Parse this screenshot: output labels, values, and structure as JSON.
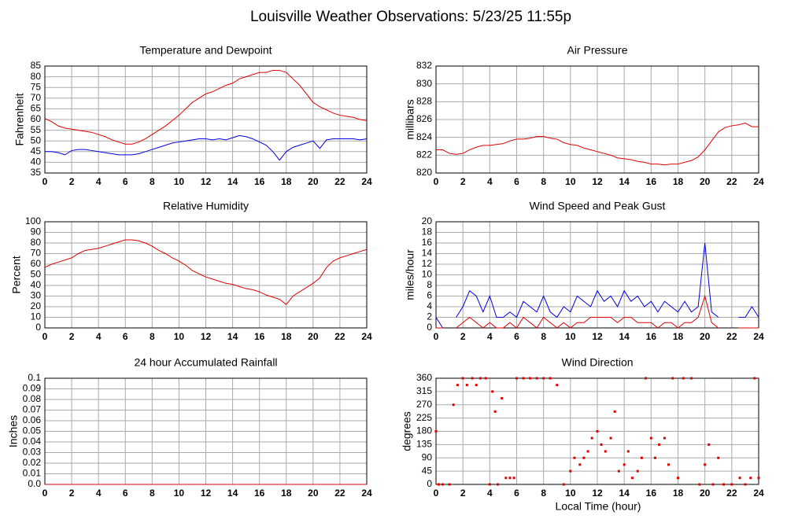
{
  "title": "Louisville Weather Observations: 5/23/25 11:55p",
  "x_label": "Local Time (hour)",
  "chart_data": [
    {
      "type": "line",
      "title": "Temperature and Dewpoint",
      "y_label": "Fahrenheit",
      "x": [
        0,
        0.5,
        1,
        1.5,
        2,
        2.5,
        3,
        3.5,
        4,
        4.5,
        5,
        5.5,
        6,
        6.5,
        7,
        7.5,
        8,
        8.5,
        9,
        9.5,
        10,
        10.5,
        11,
        11.5,
        12,
        12.5,
        13,
        13.5,
        14,
        14.5,
        15,
        15.5,
        16,
        16.5,
        17,
        17.5,
        18,
        18.5,
        19,
        19.5,
        20,
        20.5,
        21,
        21.5,
        22,
        22.5,
        23,
        23.5,
        24
      ],
      "series": [
        {
          "color": "#e00000",
          "values": [
            60.5,
            59,
            57,
            56,
            55.5,
            55,
            54.5,
            54,
            53,
            52,
            50.5,
            49.5,
            48.5,
            48.5,
            49.5,
            51,
            53,
            55,
            57,
            59.5,
            62,
            65,
            68,
            70,
            72,
            73,
            74.5,
            76,
            77,
            79,
            80,
            81,
            82,
            82,
            83,
            83,
            82,
            79,
            76,
            72,
            68,
            66,
            64.5,
            63,
            62,
            61.5,
            61,
            60,
            59.5
          ]
        },
        {
          "color": "#0000e0",
          "values": [
            45,
            45,
            44.5,
            43.5,
            45.5,
            46,
            46,
            45.5,
            45,
            44.5,
            44,
            43.5,
            43.5,
            43.5,
            44,
            45,
            46,
            47,
            48,
            49,
            49.5,
            50,
            50.5,
            51,
            51,
            50.5,
            51,
            50.5,
            51.5,
            52.5,
            52,
            51,
            49.5,
            48,
            45,
            41,
            45,
            47,
            48,
            49,
            50,
            46.5,
            50.5,
            51,
            51,
            51,
            51,
            50.5,
            51
          ]
        }
      ],
      "xlim": [
        0,
        24
      ],
      "xticks": [
        0,
        2,
        4,
        6,
        8,
        10,
        12,
        14,
        16,
        18,
        20,
        22,
        24
      ],
      "ylim": [
        35,
        85
      ],
      "yticks": [
        35,
        40,
        45,
        50,
        55,
        60,
        65,
        70,
        75,
        80,
        85
      ],
      "grid": true
    },
    {
      "type": "line",
      "title": "Air Pressure",
      "y_label": "millibars",
      "x": [
        0,
        0.5,
        1,
        1.5,
        2,
        2.5,
        3,
        3.5,
        4,
        4.5,
        5,
        5.5,
        6,
        6.5,
        7,
        7.5,
        8,
        8.5,
        9,
        9.5,
        10,
        10.5,
        11,
        11.5,
        12,
        12.5,
        13,
        13.5,
        14,
        14.5,
        15,
        15.5,
        16,
        16.5,
        17,
        17.5,
        18,
        18.5,
        19,
        19.5,
        20,
        20.5,
        21,
        21.5,
        22,
        22.5,
        23,
        23.5,
        24
      ],
      "series": [
        {
          "color": "#e00000",
          "values": [
            822.6,
            822.6,
            822.2,
            822.1,
            822.2,
            822.6,
            822.9,
            823.1,
            823.1,
            823.2,
            823.3,
            823.6,
            823.8,
            823.8,
            823.9,
            824.1,
            824.1,
            823.9,
            823.8,
            823.4,
            823.2,
            823.1,
            822.8,
            822.6,
            822.4,
            822.2,
            822,
            821.7,
            821.6,
            821.5,
            821.3,
            821.2,
            821,
            821,
            820.9,
            821,
            821,
            821.2,
            821.4,
            821.8,
            822.6,
            823.6,
            824.6,
            825.1,
            825.3,
            825.4,
            825.6,
            825.2,
            825.2
          ]
        }
      ],
      "xlim": [
        0,
        24
      ],
      "xticks": [
        0,
        2,
        4,
        6,
        8,
        10,
        12,
        14,
        16,
        18,
        20,
        22,
        24
      ],
      "ylim": [
        820,
        832
      ],
      "yticks": [
        820,
        822,
        824,
        826,
        828,
        830,
        832
      ],
      "grid": true
    },
    {
      "type": "line",
      "title": "Relative Humidity",
      "y_label": "Percent",
      "x": [
        0,
        0.5,
        1,
        1.5,
        2,
        2.5,
        3,
        3.5,
        4,
        4.5,
        5,
        5.5,
        6,
        6.5,
        7,
        7.5,
        8,
        8.5,
        9,
        9.5,
        10,
        10.5,
        11,
        11.5,
        12,
        12.5,
        13,
        13.5,
        14,
        14.5,
        15,
        15.5,
        16,
        16.5,
        17,
        17.5,
        18,
        18.5,
        19,
        19.5,
        20,
        20.5,
        21,
        21.5,
        22,
        22.5,
        23,
        23.5,
        24
      ],
      "series": [
        {
          "color": "#e00000",
          "values": [
            57,
            60,
            62,
            64,
            66,
            70,
            73,
            74,
            75,
            77,
            79,
            81,
            83,
            83,
            82,
            80,
            77,
            73,
            70,
            66,
            63,
            59,
            54,
            51,
            48,
            46,
            44,
            42,
            41,
            39,
            37,
            36,
            34,
            31,
            29,
            27,
            22,
            30,
            34,
            38,
            42,
            47,
            57,
            63,
            66,
            68,
            70,
            72,
            74
          ]
        }
      ],
      "xlim": [
        0,
        24
      ],
      "xticks": [
        0,
        2,
        4,
        6,
        8,
        10,
        12,
        14,
        16,
        18,
        20,
        22,
        24
      ],
      "ylim": [
        0,
        100
      ],
      "yticks": [
        0,
        10,
        20,
        30,
        40,
        50,
        60,
        70,
        80,
        90,
        100
      ],
      "grid": true
    },
    {
      "type": "line",
      "title": "Wind Speed and Peak Gust",
      "y_label": "miles/hour",
      "x": [
        0,
        0.5,
        1,
        1.5,
        2,
        2.5,
        3,
        3.5,
        4,
        4.5,
        5,
        5.5,
        6,
        6.5,
        7,
        7.5,
        8,
        8.5,
        9,
        9.5,
        10,
        10.5,
        11,
        11.5,
        12,
        12.5,
        13,
        13.5,
        14,
        14.5,
        15,
        15.5,
        16,
        16.5,
        17,
        17.5,
        18,
        18.5,
        19,
        19.5,
        20,
        20.5,
        21,
        21.5,
        22,
        22.5,
        23,
        23.5,
        24
      ],
      "series": [
        {
          "color": "#0000e0",
          "values": [
            2,
            0,
            null,
            2,
            4,
            7,
            6,
            3,
            6,
            2,
            2,
            3,
            2,
            5,
            4,
            3,
            6,
            3,
            2,
            4,
            3,
            6,
            5,
            4,
            7,
            5,
            6,
            4,
            7,
            5,
            6,
            4,
            5,
            3,
            5,
            4,
            3,
            5,
            3,
            4,
            16,
            3,
            2,
            null,
            null,
            2,
            2,
            4,
            2
          ]
        },
        {
          "color": "#e00000",
          "values": [
            0,
            0,
            null,
            0,
            1,
            2,
            1,
            0,
            1,
            0,
            0,
            1,
            0,
            2,
            1,
            0,
            2,
            1,
            0,
            1,
            0,
            1,
            1,
            2,
            2,
            2,
            2,
            1,
            2,
            2,
            1,
            1,
            1,
            0,
            1,
            1,
            0,
            1,
            1,
            2,
            6,
            1,
            0,
            null,
            null,
            0,
            0,
            0,
            0
          ]
        }
      ],
      "xlim": [
        0,
        24
      ],
      "xticks": [
        0,
        2,
        4,
        6,
        8,
        10,
        12,
        14,
        16,
        18,
        20,
        22,
        24
      ],
      "ylim": [
        0,
        20
      ],
      "yticks": [
        0,
        2,
        4,
        6,
        8,
        10,
        12,
        14,
        16,
        18,
        20
      ],
      "grid": true
    },
    {
      "type": "line",
      "title": "24 hour Accumulated Rainfall",
      "y_label": "Inches",
      "x": [
        0,
        24
      ],
      "series": [
        {
          "color": "#e00000",
          "values": [
            0,
            0
          ]
        }
      ],
      "xlim": [
        0,
        24
      ],
      "xticks": [
        0,
        2,
        4,
        6,
        8,
        10,
        12,
        14,
        16,
        18,
        20,
        22,
        24
      ],
      "ylim": [
        0,
        0.1
      ],
      "yticks": [
        {
          "value": 0,
          "label": "0.0"
        },
        0.01,
        0.02,
        0.03,
        0.04,
        0.05,
        0.06,
        0.07,
        0.08,
        0.09,
        0.1
      ],
      "grid": true
    },
    {
      "type": "scatter",
      "title": "Wind Direction",
      "y_label": "degrees",
      "x": [
        0,
        0.2,
        0.5,
        1,
        1.3,
        1.6,
        2,
        2.3,
        2.7,
        3,
        3.3,
        3.7,
        4,
        4.2,
        4.4,
        4.6,
        4.9,
        5.2,
        5.5,
        5.8,
        6,
        6.5,
        7,
        7.5,
        8,
        8.5,
        9,
        9.5,
        10,
        10.3,
        10.7,
        11,
        11.3,
        11.6,
        12,
        12.3,
        12.6,
        13,
        13.3,
        13.6,
        14,
        14.3,
        14.6,
        15,
        15.3,
        15.6,
        16,
        16.3,
        16.6,
        17,
        17.3,
        17.6,
        18,
        18.4,
        19,
        19.6,
        20,
        20.3,
        20.6,
        21,
        21.4,
        22,
        22.6,
        23,
        23.4,
        23.7,
        24
      ],
      "series": [
        {
          "color": "#e00000",
          "values": [
            180,
            0,
            0,
            0,
            270,
            337,
            360,
            337,
            360,
            337,
            360,
            360,
            0,
            315,
            247,
            0,
            292,
            22,
            22,
            22,
            360,
            360,
            360,
            360,
            360,
            360,
            337,
            0,
            45,
            90,
            67,
            90,
            112,
            157,
            180,
            135,
            112,
            157,
            247,
            45,
            67,
            112,
            22,
            45,
            90,
            360,
            157,
            90,
            135,
            157,
            67,
            360,
            22,
            360,
            360,
            0,
            67,
            135,
            0,
            90,
            0,
            0,
            22,
            0,
            22,
            360,
            22
          ]
        }
      ],
      "xlim": [
        0,
        24
      ],
      "xticks": [
        0,
        2,
        4,
        6,
        8,
        10,
        12,
        14,
        16,
        18,
        20,
        22,
        24
      ],
      "ylim": [
        0,
        360
      ],
      "yticks": [
        0,
        45,
        90,
        135,
        180,
        225,
        270,
        315,
        360
      ],
      "grid": true
    }
  ]
}
